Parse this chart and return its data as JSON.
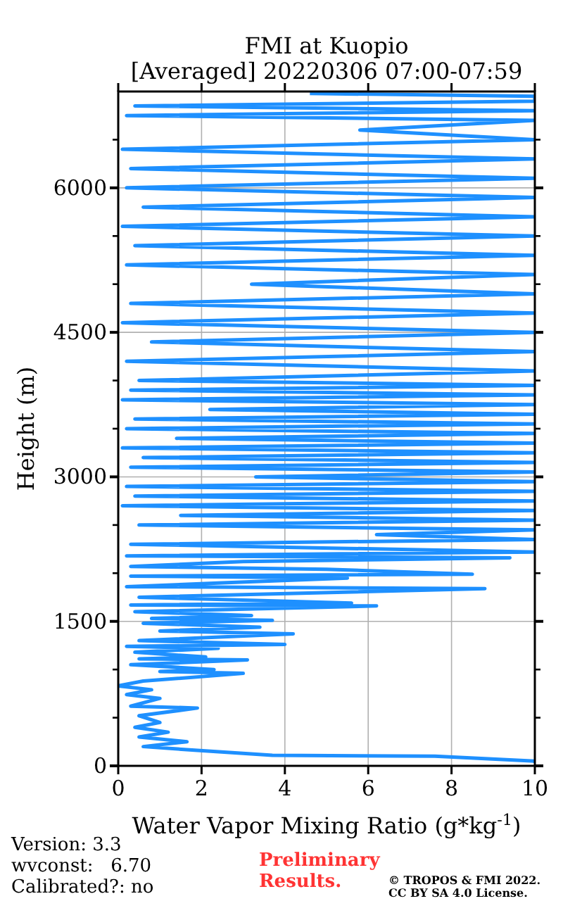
{
  "chart_data": {
    "type": "line",
    "title": "FMI at Kuopio",
    "subtitle": "[Averaged] 20220306 07:00-07:59",
    "xlabel": "Water Vapor Mixing Ratio (g*kg$^{-1}$)",
    "ylabel": "Height (m)",
    "xlim": [
      0,
      10
    ],
    "xticks": [
      0,
      2,
      4,
      6,
      8,
      10
    ],
    "ylim": [
      0,
      7000
    ],
    "yticks": [
      0,
      {
        "value": 500,
        "label": null
      },
      {
        "value": 1000,
        "label": null
      },
      1500,
      {
        "value": 2000,
        "label": null
      },
      {
        "value": 2500,
        "label": null
      },
      3000,
      {
        "value": 3500,
        "label": null
      },
      {
        "value": 4000,
        "label": null
      },
      4500,
      {
        "value": 5000,
        "label": null
      },
      {
        "value": 5500,
        "label": null
      },
      6000,
      {
        "value": 6500,
        "label": null
      }
    ],
    "grid": true,
    "marker": "none",
    "line_style": "solid",
    "series": [
      {
        "color": "#1e90ff",
        "x": [
          10,
          10,
          7.6,
          3.7,
          1.9,
          0.6,
          1.65,
          0.5,
          1.2,
          0.4,
          1.0,
          0.5,
          1.9,
          0.3,
          1.0,
          0.2,
          0.8,
          0.0,
          0.6,
          3.0,
          1.0,
          2.3,
          0.3,
          3.1,
          0.5,
          2.1,
          0.4,
          2.4,
          0.2,
          4.0,
          0.5,
          4.2,
          1.0,
          3.4,
          0.6,
          3.7,
          0.8,
          3.2,
          0.4,
          6.2,
          0.3,
          5.6,
          0.5,
          8.8,
          0.2,
          2.5,
          5.5,
          0.3,
          8.5,
          5.0,
          0.3,
          3.0,
          9.4,
          0.2,
          10,
          0.3,
          10,
          6.2,
          10,
          0.5,
          10,
          1.5,
          10,
          0.1,
          10,
          0.4,
          10,
          0.2,
          10,
          3.3,
          10,
          0.3,
          10,
          0.6,
          10,
          0.1,
          10,
          1.4,
          10,
          0.2,
          10,
          0.4,
          10,
          2.2,
          10,
          0.1,
          10,
          0.3,
          10,
          0.5,
          10,
          0.2,
          10,
          0.8,
          10,
          0.1,
          10,
          0.3,
          10,
          3.2,
          10,
          0.2,
          10,
          0.4,
          10,
          0.1,
          10,
          0.6,
          10,
          0.2,
          10,
          0.3,
          10,
          0.1,
          10,
          5.8,
          10,
          0.2,
          10,
          0.4,
          10,
          10,
          4.6
        ],
        "values": [
          30,
          50,
          100,
          110,
          160,
          200,
          250,
          300,
          350,
          400,
          450,
          520,
          600,
          620,
          700,
          740,
          790,
          830,
          880,
          960,
          980,
          1000,
          1050,
          1100,
          1110,
          1130,
          1180,
          1220,
          1240,
          1260,
          1300,
          1370,
          1400,
          1440,
          1480,
          1510,
          1530,
          1560,
          1600,
          1660,
          1670,
          1690,
          1750,
          1840,
          1860,
          1900,
          1950,
          1970,
          1990,
          2040,
          2070,
          2120,
          2160,
          2180,
          2220,
          2300,
          2350,
          2400,
          2450,
          2500,
          2550,
          2600,
          2650,
          2700,
          2750,
          2800,
          2850,
          2900,
          2950,
          3000,
          3050,
          3100,
          3150,
          3200,
          3250,
          3300,
          3350,
          3400,
          3450,
          3500,
          3550,
          3600,
          3650,
          3700,
          3750,
          3800,
          3850,
          3900,
          3950,
          4000,
          4100,
          4200,
          4300,
          4400,
          4500,
          4600,
          4700,
          4800,
          4900,
          5000,
          5100,
          5200,
          5300,
          5400,
          5500,
          5600,
          5700,
          5800,
          5900,
          6000,
          6100,
          6200,
          6300,
          6400,
          6500,
          6600,
          6700,
          6750,
          6800,
          6850,
          6900,
          6950,
          6980
        ]
      }
    ],
    "annotations": [
      "Version: 3.3",
      "wvconst:   6.70",
      "Calibrated?: no",
      "Preliminary Results.",
      "© TROPOS & FMI 2022. CC BY SA 4.0 License."
    ]
  }
}
